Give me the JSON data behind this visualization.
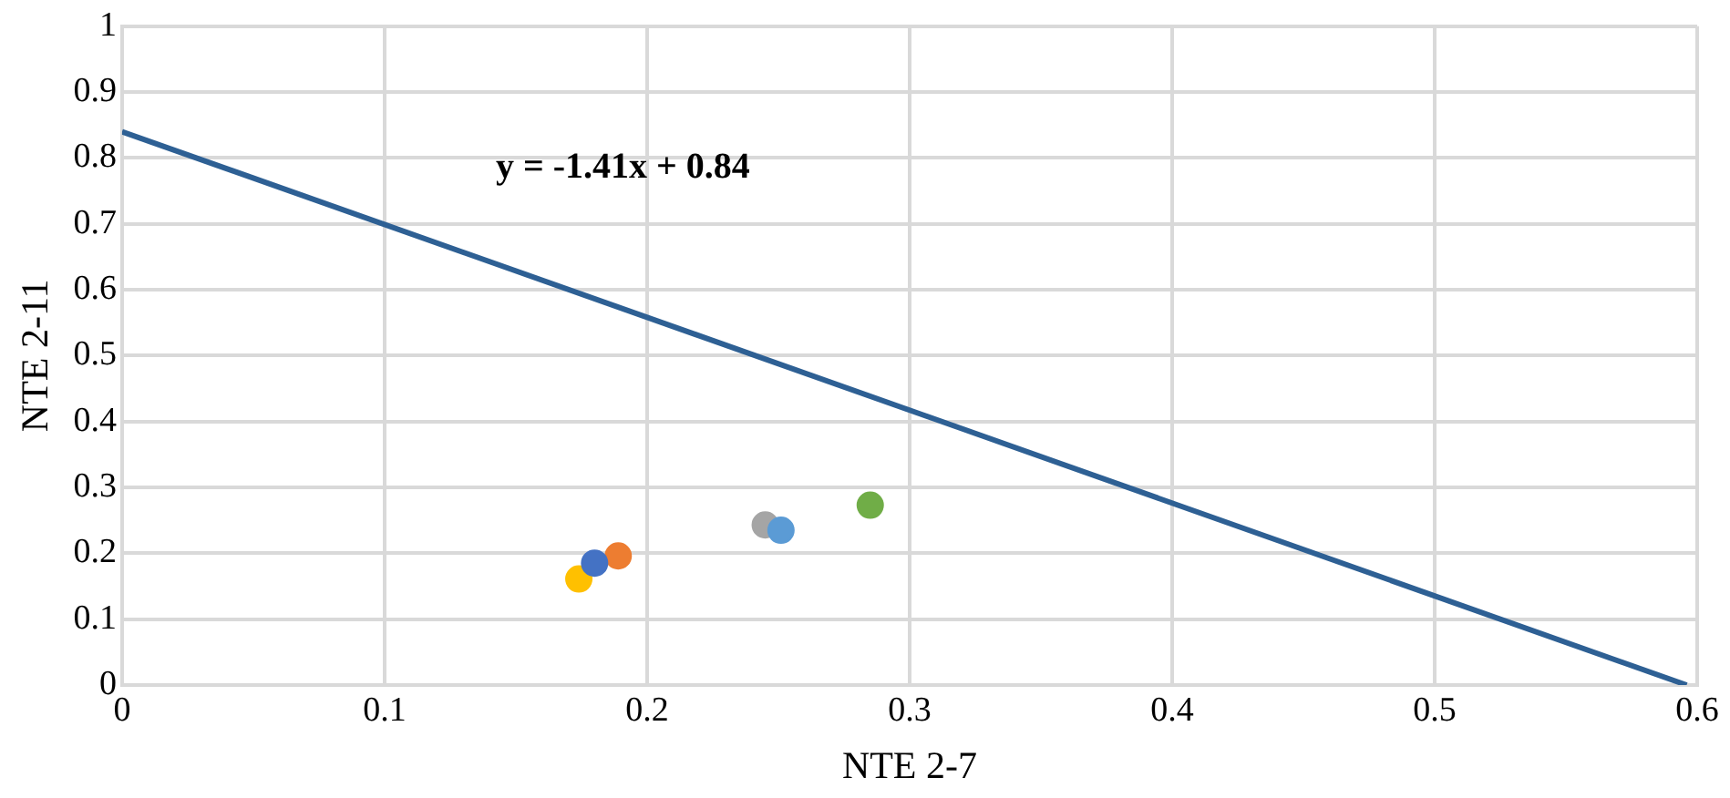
{
  "chart_data": {
    "type": "scatter",
    "xlabel": "NTE 2-7",
    "ylabel": "NTE 2-11",
    "xlim": [
      0,
      0.6
    ],
    "xticks": [
      0,
      0.1,
      0.2,
      0.3,
      0.4,
      0.5,
      0.6
    ],
    "ylim": [
      0,
      1
    ],
    "yticks": [
      0,
      0.1,
      0.2,
      0.3,
      0.4,
      0.5,
      0.6,
      0.7,
      0.8,
      0.9,
      1
    ],
    "grid": true,
    "series": [
      {
        "marker": "circle",
        "x": [
          0.174,
          0.189,
          0.18,
          0.245,
          0.251,
          0.285
        ],
        "values": [
          0.161,
          0.196,
          0.185,
          0.243,
          0.235,
          0.273
        ],
        "colors": [
          "#ffc000",
          "#ed7d31",
          "#4472c4",
          "#a5a5a5",
          "#5b9bd5",
          "#70ad47"
        ]
      },
      {
        "type": "line",
        "x": [
          0,
          0.596
        ],
        "values": [
          0.84,
          0
        ],
        "color": "#2e6094"
      }
    ],
    "annotations": [
      "y = -1.41x + 0.84"
    ]
  }
}
